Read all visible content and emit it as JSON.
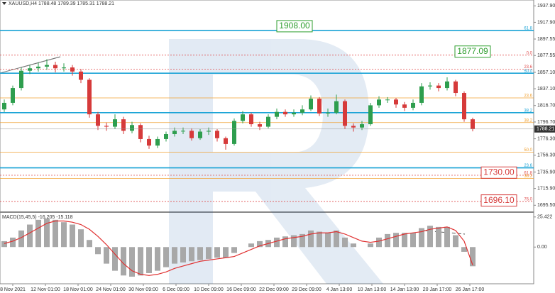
{
  "header": "XAUUSD,H4  1788.48 1789.39 1785.31 1788.21",
  "chart_data": [
    {
      "type": "candlestick",
      "ylim": [
        1688,
        1945
      ],
      "yticks": [
        {
          "value": 1937.9,
          "label": "1937.90"
        },
        {
          "value": 1917.9,
          "label": "1917.90"
        },
        1897.55,
        1877.55,
        {
          "value": 1857.1,
          "label": "1857.10"
        },
        {
          "value": 1837.1,
          "label": "1837.10"
        },
        {
          "value": 1816.7,
          "label": "1816.70"
        },
        {
          "value": 1796.7,
          "label": "1796.70"
        },
        {
          "value": 1776.3,
          "label": "1776.30"
        },
        {
          "value": 1756.3,
          "label": "1756.30"
        },
        {
          "value": 1735.9,
          "label": "1735.90"
        },
        {
          "value": 1715.9,
          "label": "1715.90"
        },
        {
          "value": 1695.5,
          "label": "1695.50"
        }
      ],
      "categories": [
        "8 Nov 2021",
        "12 Nov 01:00",
        "18 Nov 01:00",
        "24 Nov 01:00",
        "30 Nov 09:00",
        "6 Dec 09:00",
        "10 Dec 09:00",
        "16 Dec 09:00",
        "22 Dec 09:00",
        "29 Dec 09:00",
        "4 Jan 13:00",
        "10 Jan 13:00",
        "14 Jan 13:00",
        "20 Jan 17:00",
        "26 Jan 17:00"
      ],
      "open": [
        1812,
        1820,
        1838,
        1859,
        1862,
        1864,
        1866,
        1862,
        1863,
        1858,
        1848,
        1806,
        1792,
        1791,
        1800,
        1786,
        1793,
        1776,
        1768,
        1776,
        1782,
        1786,
        1786,
        1777,
        1785,
        1786,
        1777,
        1770,
        1798,
        1806,
        1794,
        1791,
        1803,
        1809,
        1806,
        1808,
        1812,
        1825,
        1807,
        1808,
        1822,
        1792,
        1790,
        1794,
        1817,
        1824,
        1824,
        1818,
        1814,
        1820,
        1840,
        1841,
        1838,
        1846,
        1832,
        1800
      ],
      "high": [
        1824,
        1841,
        1863,
        1866,
        1869,
        1873,
        1870,
        1868,
        1866,
        1861,
        1850,
        1809,
        1796,
        1806,
        1803,
        1797,
        1795,
        1780,
        1779,
        1785,
        1790,
        1790,
        1789,
        1788,
        1790,
        1788,
        1779,
        1801,
        1810,
        1808,
        1797,
        1806,
        1813,
        1812,
        1812,
        1817,
        1829,
        1827,
        1813,
        1830,
        1824,
        1795,
        1798,
        1820,
        1828,
        1827,
        1826,
        1821,
        1824,
        1844,
        1845,
        1844,
        1851,
        1848,
        1834,
        1802
      ],
      "low": [
        1809,
        1817,
        1835,
        1855,
        1858,
        1860,
        1857,
        1858,
        1853,
        1844,
        1802,
        1787,
        1786,
        1788,
        1782,
        1783,
        1772,
        1764,
        1765,
        1773,
        1779,
        1782,
        1774,
        1775,
        1781,
        1773,
        1763,
        1768,
        1795,
        1791,
        1787,
        1789,
        1800,
        1803,
        1803,
        1805,
        1810,
        1804,
        1803,
        1806,
        1788,
        1785,
        1787,
        1792,
        1814,
        1820,
        1814,
        1810,
        1811,
        1817,
        1836,
        1834,
        1835,
        1828,
        1797,
        1785.31
      ],
      "close": [
        1820,
        1838,
        1859,
        1862,
        1864,
        1866,
        1862,
        1863,
        1858,
        1848,
        1806,
        1792,
        1791,
        1800,
        1786,
        1793,
        1776,
        1768,
        1776,
        1782,
        1786,
        1786,
        1777,
        1785,
        1786,
        1777,
        1770,
        1798,
        1806,
        1794,
        1791,
        1803,
        1809,
        1806,
        1808,
        1812,
        1825,
        1807,
        1808,
        1822,
        1792,
        1790,
        1794,
        1817,
        1824,
        1824,
        1818,
        1814,
        1820,
        1840,
        1841,
        1838,
        1846,
        1832,
        1800,
        1788.21
      ],
      "up_color": "#2e9e4e",
      "down_color": "#d63a3a",
      "levels": [
        {
          "value": 1908,
          "label": "61.8",
          "color": "#1aa3d6"
        },
        {
          "value": 1878,
          "label": "0.0",
          "color": "#e05050"
        },
        {
          "value": 1861,
          "label": "23.6",
          "color": "#e05050"
        },
        {
          "value": 1856,
          "label": "50.0",
          "color": "#1aa3d6"
        },
        {
          "value": 1826,
          "label": "23.6",
          "color": "#f0a030"
        },
        {
          "value": 1808,
          "label": "38.2",
          "color": "#1aa3d6"
        },
        {
          "value": 1796,
          "label": "38.2",
          "color": "#f0a030"
        },
        {
          "value": 1760,
          "label": "50.0",
          "color": "#f0a030"
        },
        {
          "value": 1741,
          "label": "23.6",
          "color": "#1aa3d6"
        },
        {
          "value": 1732,
          "label": "61.8",
          "color": "#e05050"
        },
        {
          "value": 1728,
          "label": "38.2",
          "color": "#f0a030"
        },
        {
          "value": 1700,
          "label": "76.0",
          "color": "#e05050"
        }
      ],
      "annotations": [
        {
          "value": 1908,
          "label": "1908.00",
          "color": "#2e9e2e"
        },
        {
          "value": 1877.09,
          "label": "1877.09",
          "color": "#2e9e2e"
        },
        {
          "value": 1730,
          "label": "1730.00",
          "color": "#d63a3a"
        },
        {
          "value": 1696.1,
          "label": "1696.10",
          "color": "#d63a3a"
        }
      ],
      "last_price": {
        "value": 1788.21,
        "label": "1788.21"
      }
    },
    {
      "type": "macd",
      "title": "MACD(15,45,5) -16.205 -15.118",
      "ylim": [
        -31,
        28.9
      ],
      "yticks": [
        25.422,
        {
          "value": 0,
          "label": "0.00"
        }
      ],
      "series": [
        {
          "color": "#a8a8a8",
          "values": [
            5,
            8,
            14,
            19,
            23,
            24,
            23,
            21,
            19,
            15,
            6,
            -6,
            -14,
            -20,
            -24,
            -25,
            -24,
            -22,
            -20,
            -17,
            -14,
            -13,
            -12,
            -11,
            -10,
            -9,
            -9,
            -5,
            0,
            3,
            5,
            6,
            8,
            9,
            10,
            11,
            14,
            13,
            12,
            14,
            8,
            3,
            0,
            3,
            8,
            11,
            12,
            12,
            12,
            16,
            18,
            17,
            17,
            10,
            -4,
            -16.205
          ]
        },
        {
          "color": "#e03030",
          "values": [
            3,
            5,
            8,
            12,
            16,
            20,
            22,
            22,
            21,
            19,
            15,
            9,
            2,
            -6,
            -14,
            -20,
            -23,
            -24,
            -23,
            -21,
            -18,
            -16,
            -14,
            -12,
            -11,
            -10,
            -9,
            -8,
            -5,
            -2,
            1,
            3,
            5,
            7,
            8,
            9,
            11,
            12,
            12,
            13,
            11,
            8,
            5,
            4,
            5,
            7,
            9,
            11,
            12,
            13,
            15,
            16,
            17,
            14,
            5,
            -15.118
          ]
        }
      ]
    }
  ]
}
